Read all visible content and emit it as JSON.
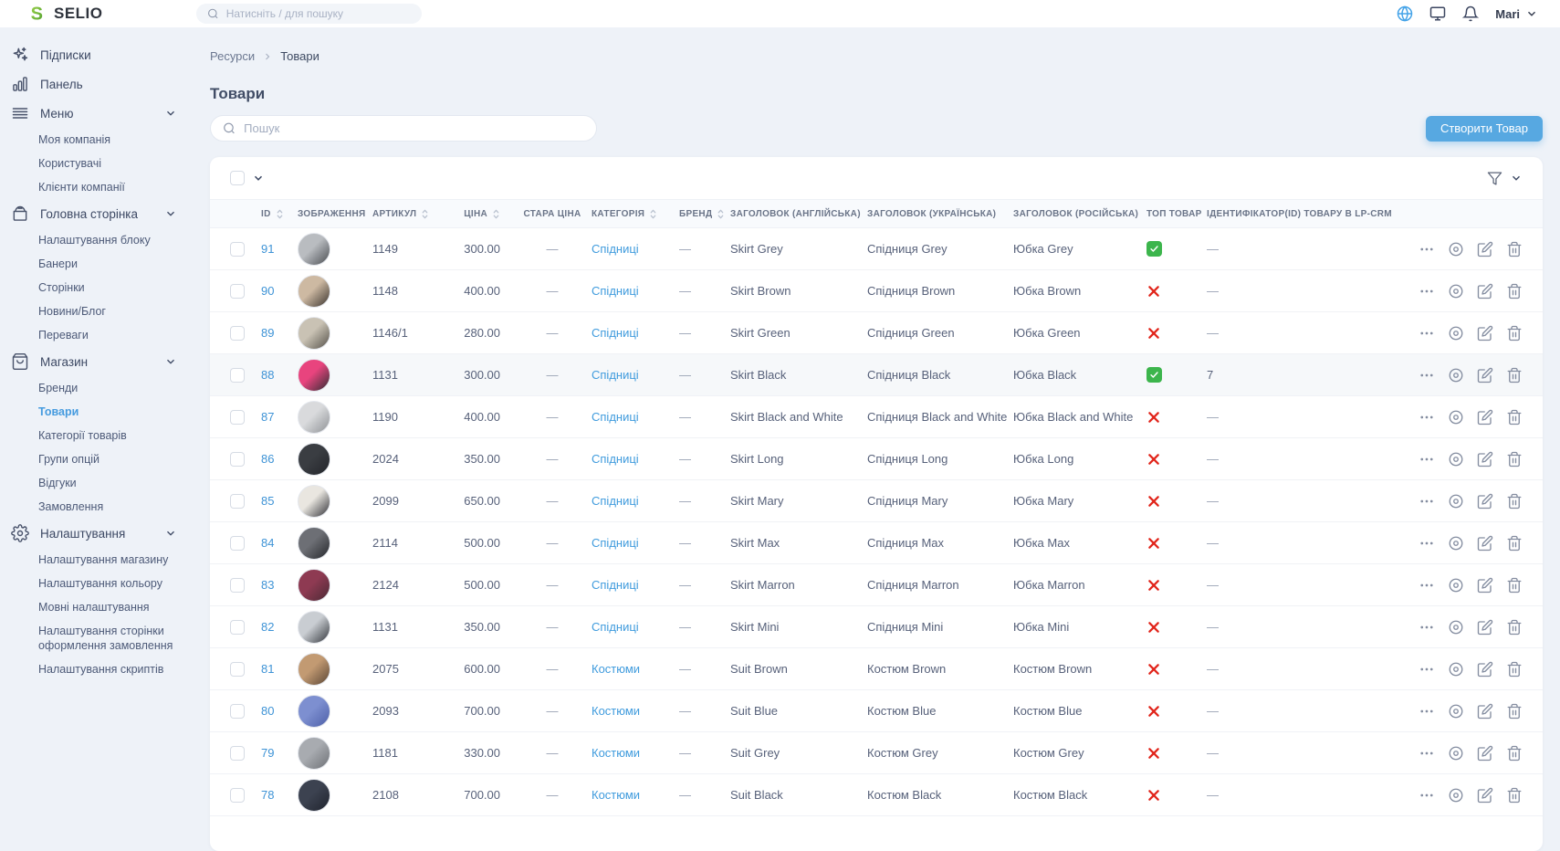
{
  "colors": {
    "accent_blue": "#459bdf",
    "button_blue": "#57a8e1",
    "success_green": "#3cb54c",
    "danger_red": "#e1251b",
    "page_bg": "#eef2f8"
  },
  "topbar": {
    "logo_text": "SELIO",
    "search_placeholder": "Натисніть / для пошуку",
    "user_name": "Mari",
    "icons": [
      "globe-icon",
      "monitor-icon",
      "bell-icon",
      "chevron-down-icon"
    ]
  },
  "sidebar": {
    "sections": [
      {
        "label": "Підписки",
        "icon": "sparkles-icon",
        "expandable": false,
        "children": []
      },
      {
        "label": "Панель",
        "icon": "bar-chart-icon",
        "expandable": false,
        "children": []
      },
      {
        "label": "Меню",
        "icon": "menu-lines-icon",
        "expandable": true,
        "children": [
          "Моя компанія",
          "Користувачі",
          "Клієнти компанії"
        ]
      },
      {
        "label": "Головна сторінка",
        "icon": "archive-box-icon",
        "expandable": true,
        "children": [
          "Налаштування блоку",
          "Банери",
          "Сторінки",
          "Новини/Блог",
          "Переваги"
        ]
      },
      {
        "label": "Магазин",
        "icon": "shopping-bag-icon",
        "expandable": true,
        "active_child": "Товари",
        "children": [
          "Бренди",
          "Товари",
          "Категорії товарів",
          "Групи опцій",
          "Відгуки",
          "Замовлення"
        ]
      },
      {
        "label": "Налаштування",
        "icon": "gear-icon",
        "expandable": true,
        "children": [
          "Налаштування магазину",
          "Налаштування кольору",
          "Мовні налаштування",
          "Налаштування сторінки оформлення замовлення",
          "Налаштування скриптів"
        ]
      }
    ]
  },
  "breadcrumb": {
    "root": "Ресурси",
    "current": "Товари"
  },
  "page": {
    "title": "Товари",
    "search_placeholder": "Пошук",
    "create_button_label": "Створити Товар"
  },
  "table": {
    "columns": [
      {
        "key": "id",
        "label": "ID",
        "sortable": true
      },
      {
        "key": "image",
        "label": "ЗОБРАЖЕННЯ",
        "sortable": false
      },
      {
        "key": "article",
        "label": "АРТИКУЛ",
        "sortable": true
      },
      {
        "key": "price",
        "label": "ЦІНА",
        "sortable": true
      },
      {
        "key": "old_price",
        "label": "СТАРА ЦІНА",
        "sortable": false
      },
      {
        "key": "category",
        "label": "КАТЕГОРІЯ",
        "sortable": true
      },
      {
        "key": "brand",
        "label": "БРЕНД",
        "sortable": true
      },
      {
        "key": "title_en",
        "label": "ЗАГОЛОВОК (АНГЛІЙСЬКА)",
        "sortable": false
      },
      {
        "key": "title_uk",
        "label": "ЗАГОЛОВОК (УКРАЇНСЬКА)",
        "sortable": false
      },
      {
        "key": "title_ru",
        "label": "ЗАГОЛОВОК (РОСІЙСЬКА)",
        "sortable": false
      },
      {
        "key": "top",
        "label": "ТОП ТОВАР",
        "sortable": false
      },
      {
        "key": "lpcrm",
        "label": "ІДЕНТИФІКАТОР(ID) ТОВАРУ В LP-CRM",
        "sortable": false
      }
    ],
    "row_actions": [
      "more-actions",
      "view",
      "edit",
      "delete"
    ],
    "rows": [
      {
        "id": "91",
        "article": "1149",
        "price": "300.00",
        "old_price": "—",
        "category": "Спідниці",
        "brand": "—",
        "title_en": "Skirt Grey",
        "title_uk": "Спідниця Grey",
        "title_ru": "Юбка Grey",
        "top": true,
        "lpcrm": "—",
        "highlighted": false,
        "img": [
          "#b9bcc0",
          "#4a4d52"
        ]
      },
      {
        "id": "90",
        "article": "1148",
        "price": "400.00",
        "old_price": "—",
        "category": "Спідниці",
        "brand": "—",
        "title_en": "Skirt Brown",
        "title_uk": "Спідниця Brown",
        "title_ru": "Юбка Brown",
        "top": false,
        "lpcrm": "—",
        "highlighted": false,
        "img": [
          "#cdb9a2",
          "#3a332e"
        ]
      },
      {
        "id": "89",
        "article": "1146/1",
        "price": "280.00",
        "old_price": "—",
        "category": "Спідниці",
        "brand": "—",
        "title_en": "Skirt Green",
        "title_uk": "Спідниця Green",
        "title_ru": "Юбка Green",
        "top": false,
        "lpcrm": "—",
        "highlighted": false,
        "img": [
          "#c9c2b4",
          "#55514a"
        ]
      },
      {
        "id": "88",
        "article": "1131",
        "price": "300.00",
        "old_price": "—",
        "category": "Спідниці",
        "brand": "—",
        "title_en": "Skirt Black",
        "title_uk": "Спідниця Black",
        "title_ru": "Юбка Black",
        "top": true,
        "lpcrm": "7",
        "highlighted": true,
        "img": [
          "#e8447e",
          "#2e2d33"
        ]
      },
      {
        "id": "87",
        "article": "1190",
        "price": "400.00",
        "old_price": "—",
        "category": "Спідниці",
        "brand": "—",
        "title_en": "Skirt Black and White",
        "title_uk": "Спідниця Black and White",
        "title_ru": "Юбка Black and White",
        "top": false,
        "lpcrm": "—",
        "highlighted": false,
        "img": [
          "#d9dadc",
          "#8f9296"
        ]
      },
      {
        "id": "86",
        "article": "2024",
        "price": "350.00",
        "old_price": "—",
        "category": "Спідниці",
        "brand": "—",
        "title_en": "Skirt Long",
        "title_uk": "Спідниця Long",
        "title_ru": "Юбка Long",
        "top": false,
        "lpcrm": "—",
        "highlighted": false,
        "img": [
          "#3a3d42",
          "#23252a"
        ]
      },
      {
        "id": "85",
        "article": "2099",
        "price": "650.00",
        "old_price": "—",
        "category": "Спідниці",
        "brand": "—",
        "title_en": "Skirt Mary",
        "title_uk": "Спідниця Mary",
        "title_ru": "Юбка Mary",
        "top": false,
        "lpcrm": "—",
        "highlighted": false,
        "img": [
          "#e9e6e0",
          "#2f3036"
        ]
      },
      {
        "id": "84",
        "article": "2114",
        "price": "500.00",
        "old_price": "—",
        "category": "Спідниці",
        "brand": "—",
        "title_en": "Skirt Max",
        "title_uk": "Спідниця Max",
        "title_ru": "Юбка Max",
        "top": false,
        "lpcrm": "—",
        "highlighted": false,
        "img": [
          "#6d6f75",
          "#26282c"
        ]
      },
      {
        "id": "83",
        "article": "2124",
        "price": "500.00",
        "old_price": "—",
        "category": "Спідниці",
        "brand": "—",
        "title_en": "Skirt Marron",
        "title_uk": "Спідниця Marron",
        "title_ru": "Юбка Marron",
        "top": false,
        "lpcrm": "—",
        "highlighted": false,
        "img": [
          "#8e3a52",
          "#4b2a35"
        ]
      },
      {
        "id": "82",
        "article": "1131",
        "price": "350.00",
        "old_price": "—",
        "category": "Спідниці",
        "brand": "—",
        "title_en": "Skirt Mini",
        "title_uk": "Спідниця Mini",
        "title_ru": "Юбка Mini",
        "top": false,
        "lpcrm": "—",
        "highlighted": false,
        "img": [
          "#c9cdd2",
          "#33363b"
        ]
      },
      {
        "id": "81",
        "article": "2075",
        "price": "600.00",
        "old_price": "—",
        "category": "Костюми",
        "brand": "—",
        "title_en": "Suit Brown",
        "title_uk": "Костюм Brown",
        "title_ru": "Костюм Brown",
        "top": false,
        "lpcrm": "—",
        "highlighted": false,
        "img": [
          "#c29a72",
          "#5a4635"
        ]
      },
      {
        "id": "80",
        "article": "2093",
        "price": "700.00",
        "old_price": "—",
        "category": "Костюми",
        "brand": "—",
        "title_en": "Suit Blue",
        "title_uk": "Костюм Blue",
        "title_ru": "Костюм Blue",
        "top": false,
        "lpcrm": "—",
        "highlighted": false,
        "img": [
          "#7d8fd0",
          "#4d5fa8"
        ]
      },
      {
        "id": "79",
        "article": "1181",
        "price": "330.00",
        "old_price": "—",
        "category": "Костюми",
        "brand": "—",
        "title_en": "Suit Grey",
        "title_uk": "Костюм Grey",
        "title_ru": "Костюм Grey",
        "top": false,
        "lpcrm": "—",
        "highlighted": false,
        "img": [
          "#a8abb0",
          "#6e7176"
        ]
      },
      {
        "id": "78",
        "article": "2108",
        "price": "700.00",
        "old_price": "—",
        "category": "Костюми",
        "brand": "—",
        "title_en": "Suit Black",
        "title_uk": "Костюм Black",
        "title_ru": "Костюм Black",
        "top": false,
        "lpcrm": "—",
        "highlighted": false,
        "img": [
          "#3c4250",
          "#20242e"
        ]
      }
    ]
  }
}
